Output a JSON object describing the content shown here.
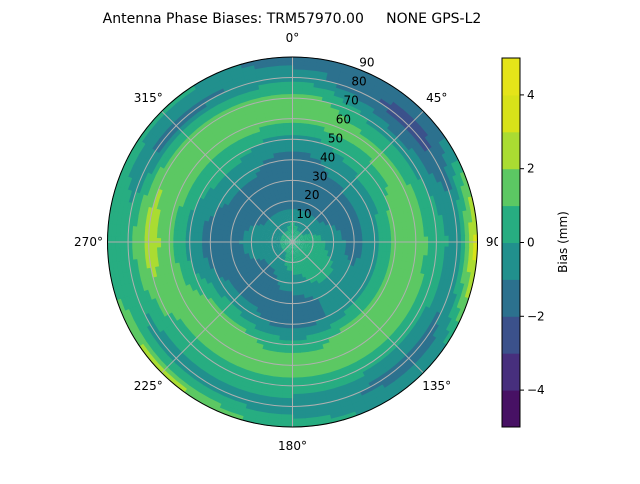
{
  "chart_data": {
    "type": "heatmap",
    "subtype": "polar-filled-contour",
    "title": "Antenna Phase Biases: TRM57970.00     NONE GPS-L2",
    "colorbar_label": "Bias (mm)",
    "colormap": "viridis",
    "levels": [
      -5,
      -4,
      -3,
      -2,
      -1,
      0,
      1,
      2,
      3,
      4,
      5
    ],
    "level_colors": [
      "#471164",
      "#472f7d",
      "#3b518b",
      "#2c718e",
      "#21908d",
      "#27ad81",
      "#5cc863",
      "#aadc32",
      "#d8e219",
      "#e5e419"
    ],
    "colorbar_ticks": [
      "−4",
      "−2",
      "0",
      "2",
      "4"
    ],
    "colorbar_tick_values": [
      -4,
      -2,
      0,
      2,
      4
    ],
    "angular_ticks": [
      "0°",
      "45°",
      "90°",
      "135°",
      "180°",
      "225°",
      "270°",
      "315°"
    ],
    "angular_tick_values": [
      0,
      45,
      90,
      135,
      180,
      225,
      270,
      315
    ],
    "angular_direction": "clockwise",
    "angular_zero": "top",
    "radial_ticks": [
      "10",
      "20",
      "30",
      "40",
      "50",
      "60",
      "70",
      "80",
      "90"
    ],
    "radial_tick_values": [
      10,
      20,
      30,
      40,
      50,
      60,
      70,
      80,
      90
    ],
    "rlim": [
      0,
      90
    ],
    "grid": true,
    "azimuths": [
      0,
      45,
      90,
      135,
      180,
      225,
      270,
      315
    ],
    "zeniths": [
      0,
      10,
      20,
      30,
      40,
      50,
      60,
      70,
      80,
      90
    ],
    "values": [
      [
        0.5,
        0.0,
        -1.5,
        -1.5,
        -1.5,
        -0.5,
        1.5,
        1.5,
        -0.5,
        -1.5
      ],
      [
        0.5,
        -0.5,
        -1.5,
        -1.5,
        -0.5,
        0.5,
        1.5,
        -0.5,
        -2.5,
        -1.5
      ],
      [
        0.5,
        0.5,
        -0.5,
        -1.5,
        -0.5,
        1.5,
        1.5,
        0.5,
        -0.5,
        3.5
      ],
      [
        0.5,
        0.5,
        0.5,
        -0.5,
        -0.5,
        1.5,
        1.5,
        0.5,
        -1.5,
        -0.5
      ],
      [
        0.5,
        0.5,
        -0.5,
        -1.5,
        -1.5,
        0.5,
        1.5,
        0.5,
        -0.5,
        0.5
      ],
      [
        0.5,
        -0.5,
        -1.5,
        -1.5,
        -0.5,
        1.5,
        1.5,
        0.5,
        -0.5,
        2.5
      ],
      [
        0.5,
        -0.5,
        -0.5,
        -1.5,
        -1.5,
        -0.5,
        1.5,
        2.5,
        0.5,
        0.5
      ],
      [
        0.5,
        -0.5,
        -1.5,
        -1.5,
        -0.5,
        0.5,
        1.5,
        1.5,
        -1.5,
        0.5
      ]
    ]
  }
}
